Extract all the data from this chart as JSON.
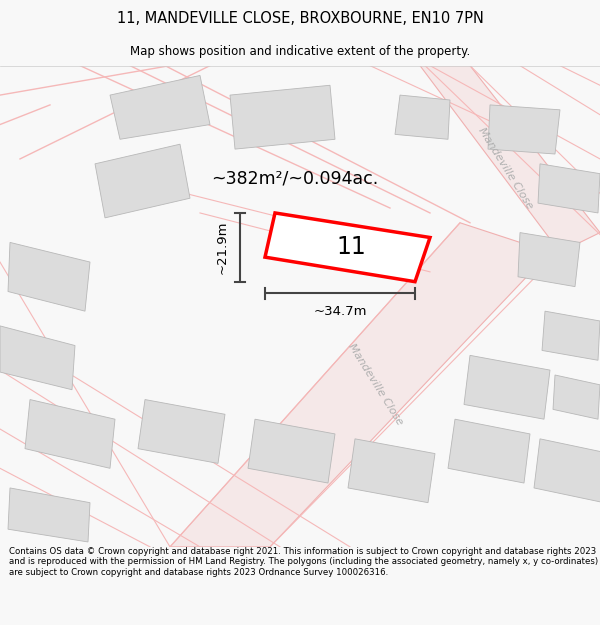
{
  "title": "11, MANDEVILLE CLOSE, BROXBOURNE, EN10 7PN",
  "subtitle": "Map shows position and indicative extent of the property.",
  "footer": "Contains OS data © Crown copyright and database right 2021. This information is subject to Crown copyright and database rights 2023 and is reproduced with the permission of HM Land Registry. The polygons (including the associated geometry, namely x, y co-ordinates) are subject to Crown copyright and database rights 2023 Ordnance Survey 100026316.",
  "area_label": "~382m²/~0.094ac.",
  "dim_width": "~34.7m",
  "dim_height": "~21.9m",
  "plot_number": "11",
  "bg_color": "#f8f8f8",
  "map_bg": "#f2f0ef",
  "plot_color": "#ff0000",
  "dim_color": "#444444",
  "road_label_top": "Mandeville Close",
  "road_label_bottom": "Mandeville Close",
  "building_color": "#dcdcdc",
  "building_edge": "#b8b8b8",
  "road_line_color": "#f5b8b8",
  "road_fill_color": "#f5e8e8",
  "road_fill_edge": "#f0b0b0"
}
